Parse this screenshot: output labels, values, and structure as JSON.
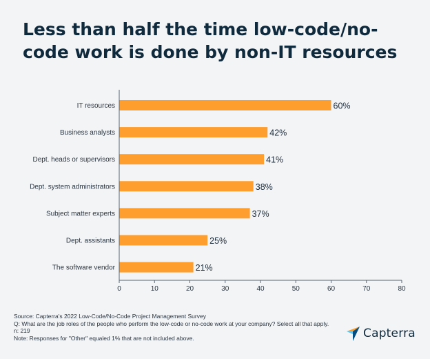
{
  "chart_data": {
    "type": "bar",
    "orientation": "horizontal",
    "title": "Less than half the time low-code/no-code work is done by non-IT resources",
    "categories": [
      "IT resources",
      "Business analysts",
      "Dept. heads or supervisors",
      "Dept. system administrators",
      "Subject matter experts",
      "Dept. assistants",
      "The software vendor"
    ],
    "values": [
      60,
      42,
      41,
      38,
      37,
      25,
      21
    ],
    "value_labels": [
      "60%",
      "42%",
      "41%",
      "38%",
      "37%",
      "25%",
      "21%"
    ],
    "xlim": [
      0,
      80
    ],
    "xticks": [
      0,
      10,
      20,
      30,
      40,
      50,
      60,
      70,
      80
    ],
    "grid": false,
    "bar_color": "#fd9e2e"
  },
  "footnotes": {
    "source": "Source: Capterra's 2022 Low-Code/No-Code Project Management Survey",
    "question": "Q: What are the job roles of the people who perform the low-code or no-code work at your company? Select all that apply.",
    "n": "n: 219",
    "note": "Note: Responses for \"Other\" equaled 1% that are not included above."
  },
  "brand": {
    "name": "Capterra",
    "logo_icon": "capterra-arrow-icon"
  }
}
